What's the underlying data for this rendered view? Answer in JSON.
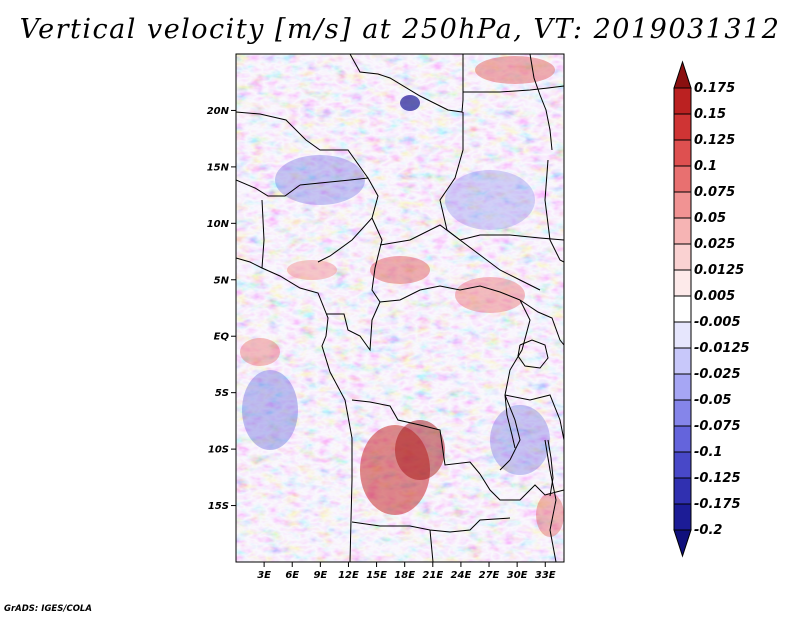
{
  "title": "Vertical velocity [m/s] at 250hPa, VT: 2019031312",
  "credit": "GrADS: IGES/COLA",
  "map": {
    "variable": "Vertical velocity",
    "units": "m/s",
    "level": "250hPa",
    "valid_time": "2019031312",
    "lat_range": [
      -20,
      25
    ],
    "lon_range": [
      0,
      35
    ],
    "lat_ticks": [
      {
        "value": 20,
        "label": "20N"
      },
      {
        "value": 15,
        "label": "15N"
      },
      {
        "value": 10,
        "label": "10N"
      },
      {
        "value": 5,
        "label": "5N"
      },
      {
        "value": 0,
        "label": "EQ"
      },
      {
        "value": -5,
        "label": "5S"
      },
      {
        "value": -10,
        "label": "10S"
      },
      {
        "value": -15,
        "label": "15S"
      }
    ],
    "lon_ticks": [
      {
        "value": 3,
        "label": "3E"
      },
      {
        "value": 6,
        "label": "6E"
      },
      {
        "value": 9,
        "label": "9E"
      },
      {
        "value": 12,
        "label": "12E"
      },
      {
        "value": 15,
        "label": "15E"
      },
      {
        "value": 18,
        "label": "18E"
      },
      {
        "value": 21,
        "label": "21E"
      },
      {
        "value": 24,
        "label": "24E"
      },
      {
        "value": 27,
        "label": "27E"
      },
      {
        "value": 30,
        "label": "30E"
      },
      {
        "value": 33,
        "label": "33E"
      }
    ]
  },
  "colorbar": {
    "levels": [
      {
        "label": "0.175",
        "color": "#a31414"
      },
      {
        "label": "0.15",
        "color": "#bb2121"
      },
      {
        "label": "0.125",
        "color": "#cf3434"
      },
      {
        "label": "0.1",
        "color": "#de5050"
      },
      {
        "label": "0.075",
        "color": "#e87070"
      },
      {
        "label": "0.05",
        "color": "#f19393"
      },
      {
        "label": "0.025",
        "color": "#f6b4b4"
      },
      {
        "label": "0.0125",
        "color": "#fad2d2"
      },
      {
        "label": "0.005",
        "color": "#fdeaea"
      },
      {
        "label": "-0.005",
        "color": "#ffffff"
      },
      {
        "label": "-0.0125",
        "color": "#e6e6fd"
      },
      {
        "label": "-0.025",
        "color": "#c8c8fa"
      },
      {
        "label": "-0.05",
        "color": "#a6a6f4"
      },
      {
        "label": "-0.075",
        "color": "#8585ea"
      },
      {
        "label": "-0.1",
        "color": "#6464dc"
      },
      {
        "label": "-0.125",
        "color": "#4848c8"
      },
      {
        "label": "-0.175",
        "color": "#3030b0"
      },
      {
        "label": "-0.2",
        "color": "#1c1c96"
      }
    ],
    "top_cap_color": "#8a1010",
    "bottom_cap_color": "#10107c"
  }
}
